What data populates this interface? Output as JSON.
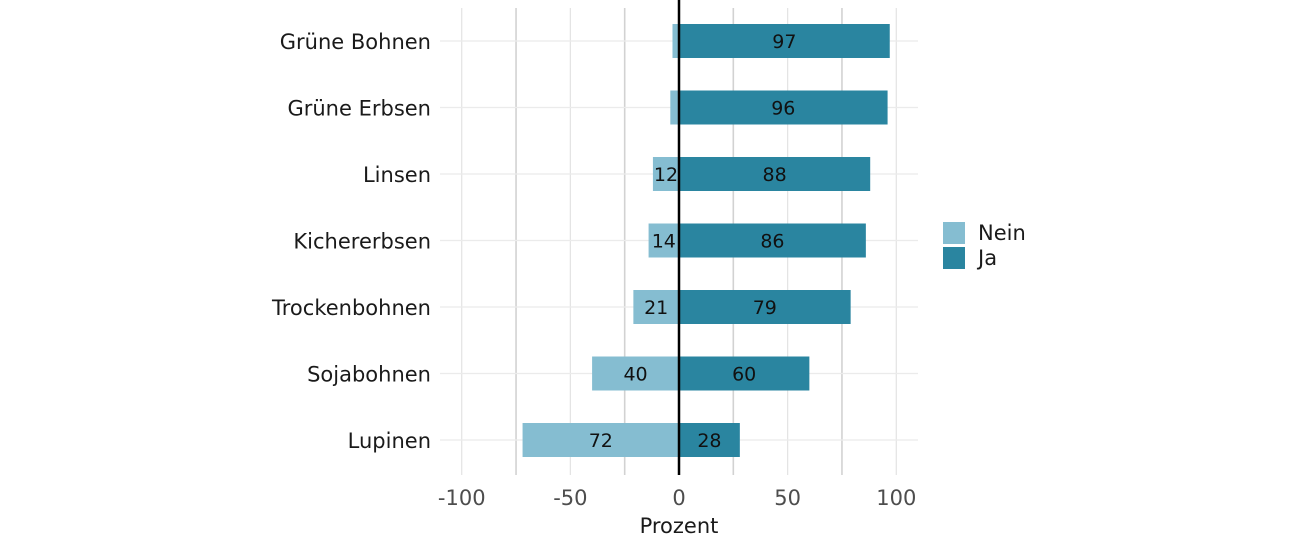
{
  "chart_data": {
    "type": "bar",
    "orientation": "horizontal",
    "stacked": "diverging",
    "categories": [
      "Grüne Bohnen",
      "Grüne Erbsen",
      "Linsen",
      "Kichererbsen",
      "Trockenbohnen",
      "Sojabohnen",
      "Lupinen"
    ],
    "series": [
      {
        "name": "Nein",
        "values": [
          3,
          4,
          12,
          14,
          21,
          40,
          72
        ],
        "labels": [
          "",
          "",
          "12",
          "14",
          "21",
          "40",
          "72"
        ],
        "color": "#85bdd1",
        "direction": "negative"
      },
      {
        "name": "Ja",
        "values": [
          97,
          96,
          88,
          86,
          79,
          60,
          28
        ],
        "labels": [
          "97",
          "96",
          "88",
          "86",
          "79",
          "60",
          "28"
        ],
        "color": "#2a85a0",
        "direction": "positive"
      }
    ],
    "xlabel": "Prozent",
    "ylabel": "",
    "xlim": [
      -110,
      110
    ],
    "xticks": [
      "-100",
      "-50",
      "0",
      "50",
      "100"
    ],
    "grid": true,
    "legend_position": "right"
  }
}
